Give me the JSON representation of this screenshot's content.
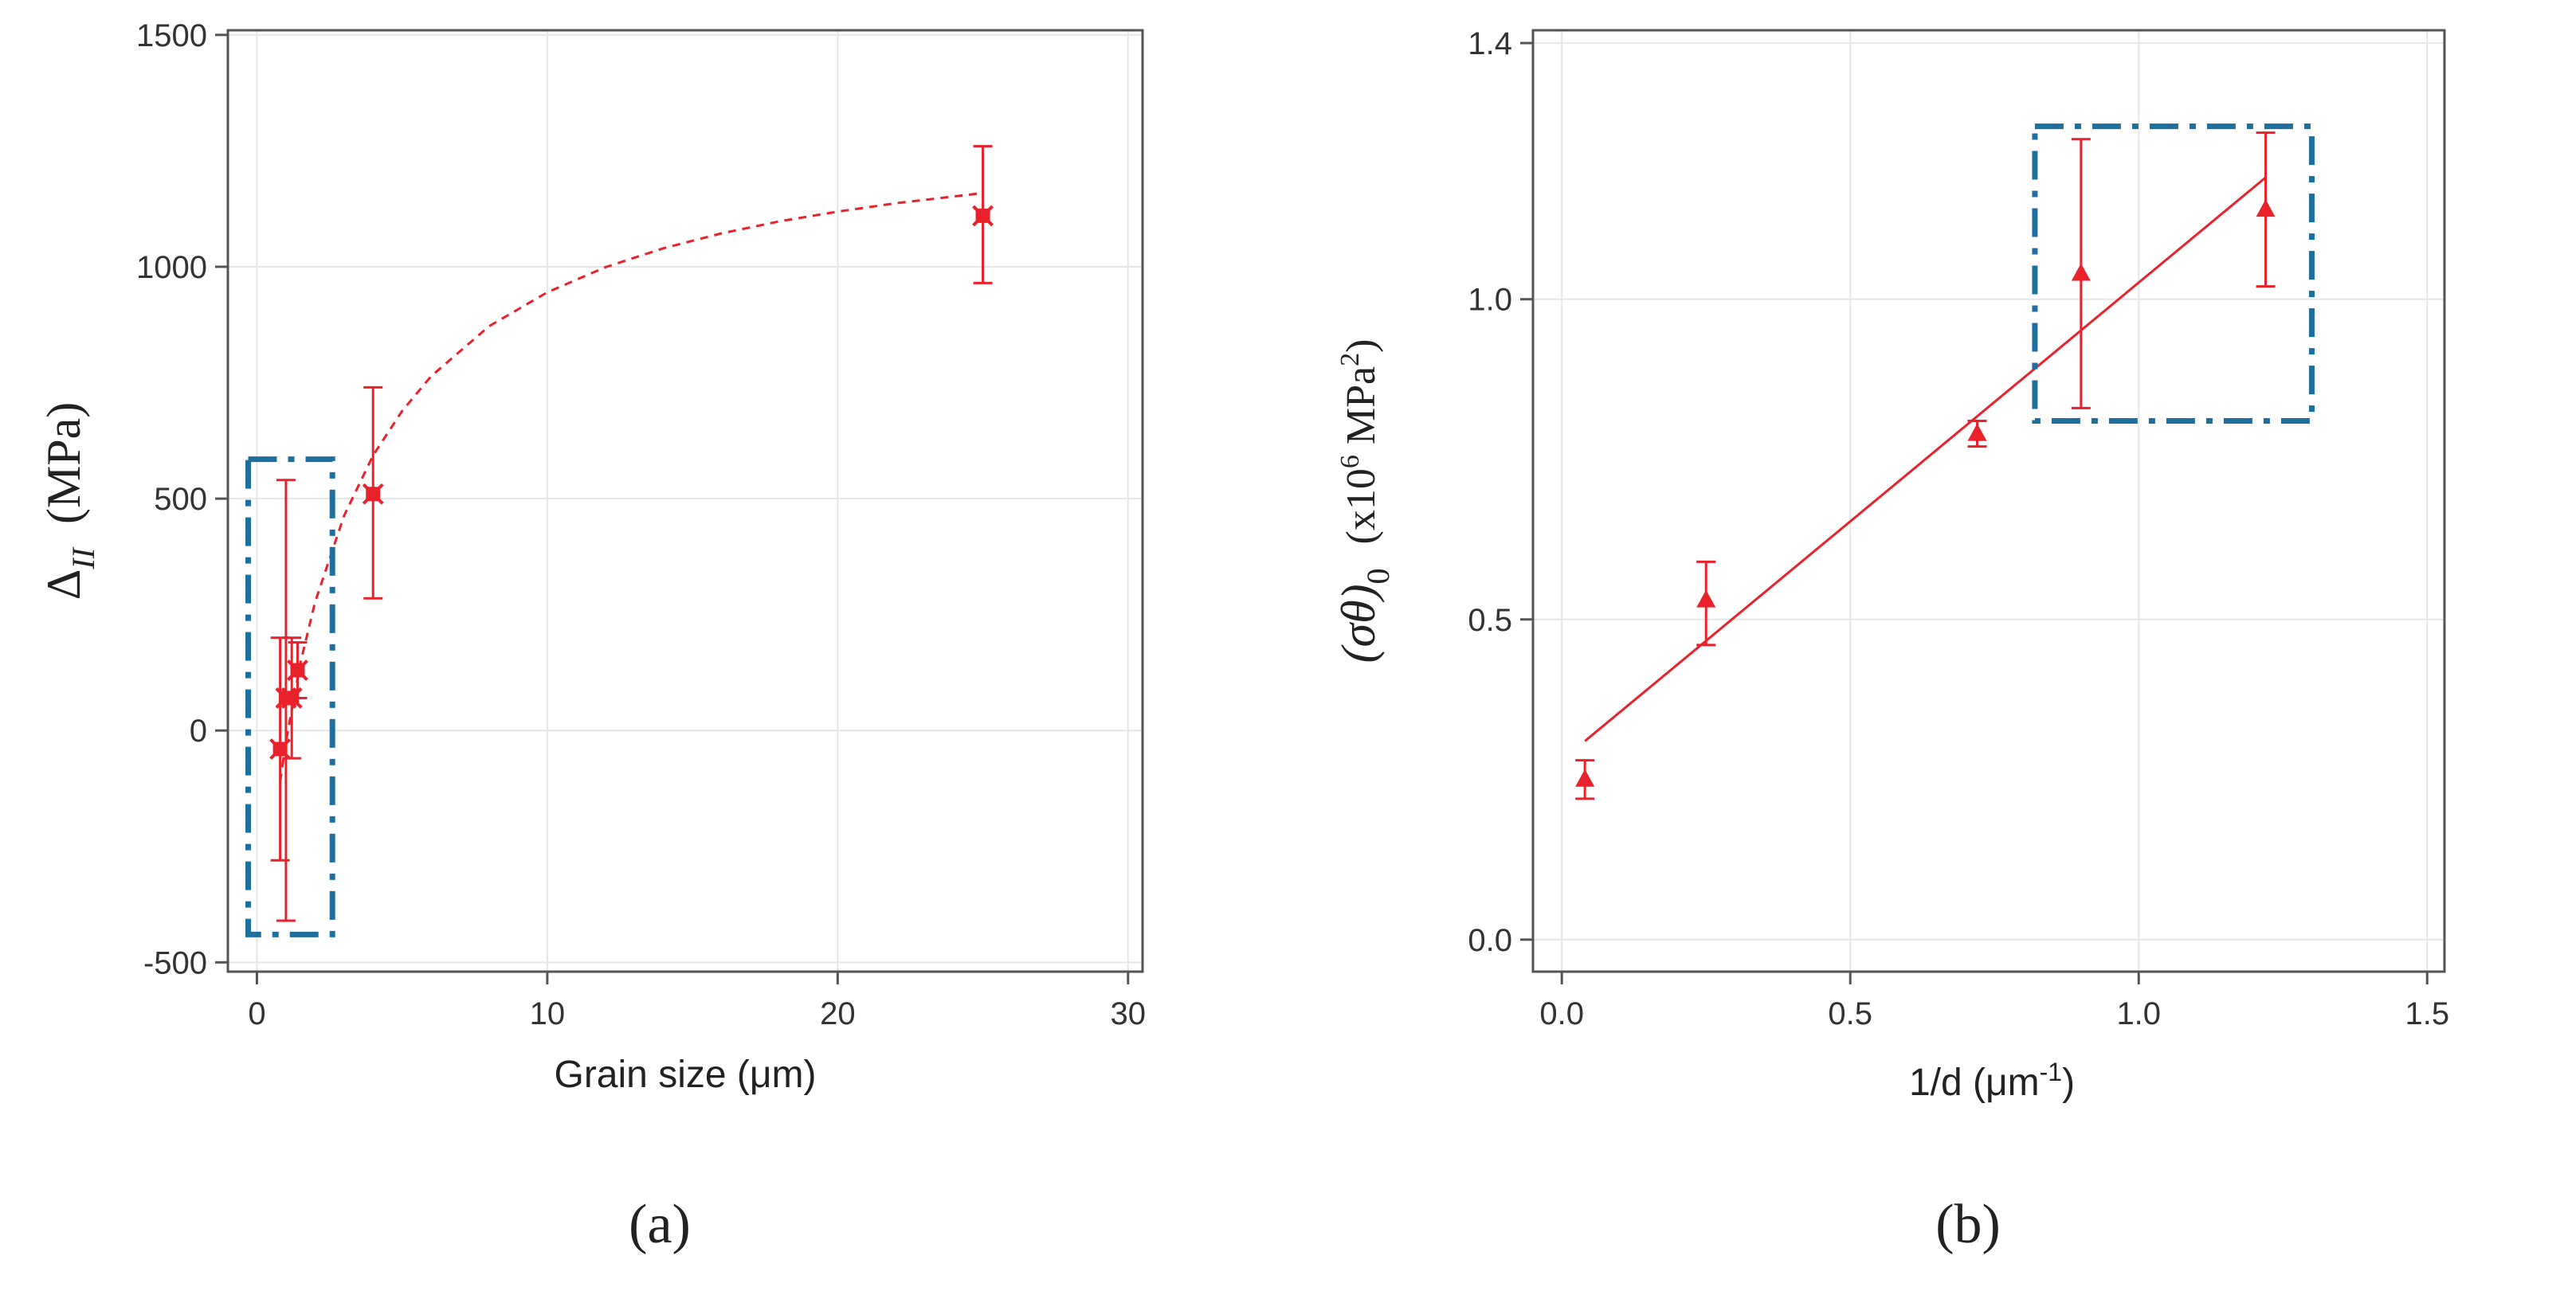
{
  "chart_data": [
    {
      "type": "scatter",
      "panel_label": "(a)",
      "xlabel": "Grain size (μm)",
      "ylabel": {
        "symbol": "Δ",
        "subscript": "II",
        "unit": "(MPa)"
      },
      "xlim": [
        -1,
        30.5
      ],
      "ylim": [
        -520,
        1510
      ],
      "xticks": [
        0,
        10,
        20,
        30
      ],
      "xtick_labels": [
        "0",
        "10",
        "20",
        "30"
      ],
      "yticks": [
        -500,
        0,
        500,
        1000,
        1500
      ],
      "ytick_labels": [
        "-500",
        "0",
        "500",
        "1000",
        "1500"
      ],
      "grid": true,
      "marker": "x-cross",
      "color": "#e8212a",
      "points": [
        {
          "x": 0.8,
          "y": -40,
          "err_low": 240,
          "err_high": 240
        },
        {
          "x": 1.0,
          "y": 70,
          "err_low": 480,
          "err_high": 470
        },
        {
          "x": 1.2,
          "y": 70,
          "err_low": 130,
          "err_high": 130
        },
        {
          "x": 1.4,
          "y": 130,
          "err_low": 60,
          "err_high": 60
        },
        {
          "x": 4.0,
          "y": 510,
          "err_low": 225,
          "err_high": 230
        },
        {
          "x": 25.0,
          "y": 1110,
          "err_low": 145,
          "err_high": 150
        }
      ],
      "fit": {
        "style": "dashed",
        "description": "hyperbolic fit",
        "x": [
          0.8,
          1,
          1.5,
          2,
          3,
          4,
          5,
          6,
          8,
          10,
          12,
          14,
          16,
          18,
          20,
          22,
          25
        ],
        "y": [
          -110,
          -24,
          146,
          276,
          463,
          593,
          689,
          764,
          872,
          945,
          999,
          1040,
          1072,
          1098,
          1119,
          1137,
          1159
        ]
      },
      "highlight_box": {
        "x0": -0.3,
        "x1": 2.6,
        "y0": -440,
        "y1": 585,
        "color": "#1f6f9e",
        "style": "dash-dot"
      }
    },
    {
      "type": "scatter",
      "panel_label": "(b)",
      "xlabel": {
        "main": "1/d (μm",
        "sup": "-1",
        "close": ")"
      },
      "ylabel": {
        "main": "(σθ)",
        "sub": "0",
        "unit_open": "(x10",
        "unit_sup": "6",
        "unit_close": " MPa",
        "unit_sup2": "2",
        "unit_end": ")"
      },
      "xlim": [
        -0.05,
        1.53
      ],
      "ylim": [
        -0.05,
        1.42
      ],
      "xticks": [
        0.0,
        0.5,
        1.0,
        1.5
      ],
      "xtick_labels": [
        "0.0",
        "0.5",
        "1.0",
        "1.5"
      ],
      "yticks": [
        0.0,
        0.5,
        1.0,
        1.4
      ],
      "ytick_labels": [
        "0.0",
        "0.5",
        "1.0",
        "1.4"
      ],
      "grid": true,
      "marker": "triangle",
      "color": "#e8212a",
      "points": [
        {
          "x": 0.04,
          "y": 0.25,
          "err_low": 0.03,
          "err_high": 0.03
        },
        {
          "x": 0.25,
          "y": 0.53,
          "err_low": 0.07,
          "err_high": 0.06
        },
        {
          "x": 0.72,
          "y": 0.79,
          "err_low": 0.02,
          "err_high": 0.02
        },
        {
          "x": 0.9,
          "y": 1.04,
          "err_low": 0.21,
          "err_high": 0.21
        },
        {
          "x": 1.22,
          "y": 1.14,
          "err_low": 0.12,
          "err_high": 0.12
        }
      ],
      "fit": {
        "style": "solid",
        "x": [
          0.04,
          1.22
        ],
        "y": [
          0.31,
          1.19
        ]
      },
      "highlight_box": {
        "x0": 0.82,
        "x1": 1.3,
        "y0": 0.81,
        "y1": 1.27,
        "color": "#1f6f9e",
        "style": "dash-dot"
      }
    }
  ]
}
